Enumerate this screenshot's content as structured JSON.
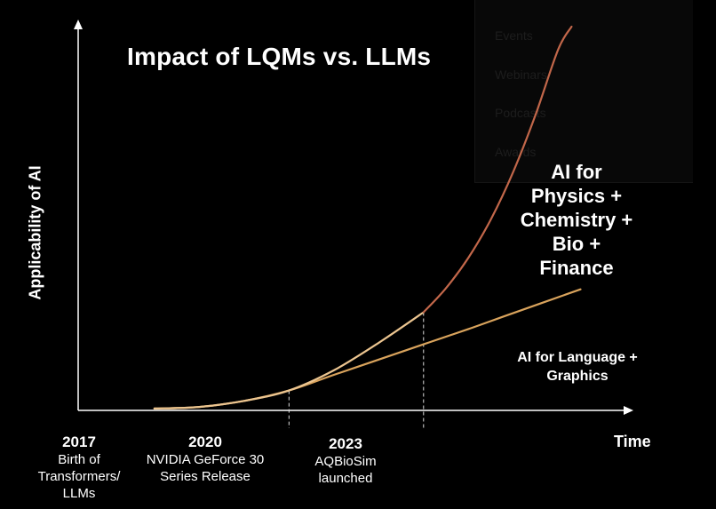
{
  "chart_data": {
    "type": "line",
    "title": "Impact of LQMs vs. LLMs",
    "xlabel": "Time",
    "ylabel": "Applicability of AI",
    "milestones": [
      {
        "year": "2017",
        "label": "Birth of Transformers/ LLMs",
        "label_lines": [
          "Birth of",
          "Transformers/",
          "LLMs"
        ]
      },
      {
        "year": "2020",
        "label": "NVIDIA GeForce 30 Series Release",
        "label_lines": [
          "NVIDIA GeForce 30",
          "Series Release"
        ]
      },
      {
        "year": "2023",
        "label": "AQBioSim launched",
        "label_lines": [
          "AQBioSim",
          "launched"
        ]
      }
    ],
    "series": [
      {
        "name": "AI for Language + Graphics",
        "label_lines": [
          "AI for Language +",
          "Graphics"
        ],
        "color": "#d9a35c",
        "x": [
          2017,
          2018,
          2019,
          2020,
          2021,
          2022,
          2023,
          2024,
          2025,
          2026.5
        ],
        "y": [
          0,
          0.4,
          2.0,
          4.7,
          8.8,
          12.8,
          16.8,
          20.8,
          25.0,
          31.2
        ]
      },
      {
        "name": "AI for Physics + Chemistry + Bio + Finance",
        "label_lines": [
          "AI for",
          "Physics +",
          "Chemistry +",
          "Bio +",
          "Finance"
        ],
        "color": "#c2674a",
        "color_early": "#ecc590",
        "highlight_from": 2023,
        "x": [
          2017,
          2018,
          2019,
          2020,
          2021,
          2022,
          2023,
          2023.5,
          2024,
          2024.5,
          2025,
          2025.5,
          2026,
          2026.3
        ],
        "y": [
          0,
          0.4,
          2.0,
          4.7,
          10.0,
          17.2,
          25.2,
          31.5,
          39.5,
          49.5,
          62.0,
          77.0,
          94.0,
          100.0
        ]
      }
    ],
    "xlim": [
      2015.3,
      2027.5
    ],
    "ylim": [
      -0.5,
      100
    ],
    "grid": false,
    "legend": "inline labels on right"
  },
  "background": {
    "menu_items": [
      "Events",
      "Webinars",
      "Podcasts",
      "Awards"
    ]
  }
}
